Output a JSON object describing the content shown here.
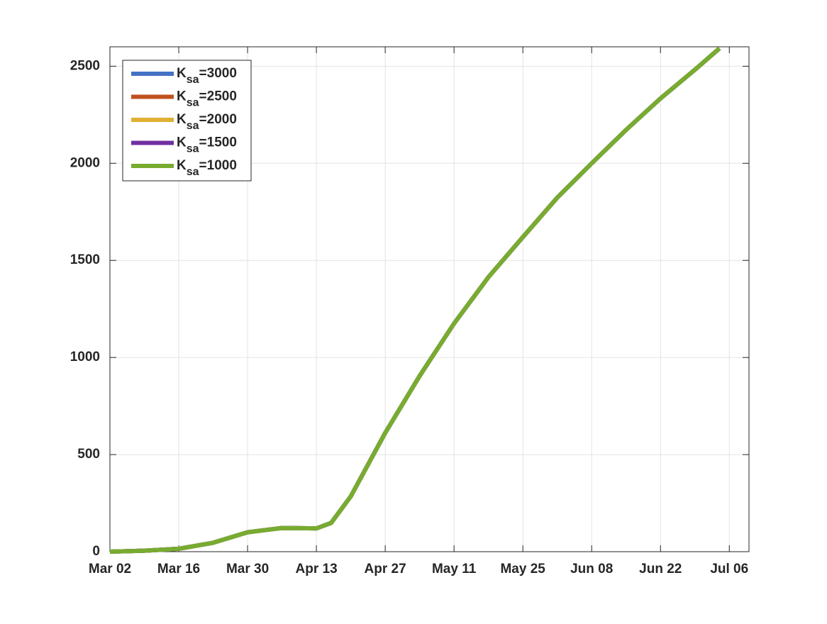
{
  "chart_data": {
    "type": "line",
    "x": [
      "Mar 02",
      "Mar 09",
      "Mar 16",
      "Mar 23",
      "Mar 30",
      "Apr 06",
      "Apr 13",
      "Apr 16",
      "Apr 20",
      "Apr 27",
      "May 04",
      "May 11",
      "May 18",
      "May 25",
      "Jun 01",
      "Jun 08",
      "Jun 15",
      "Jun 22",
      "Jun 29",
      "Jul 04"
    ],
    "series": [
      {
        "name": "Ksa=3000",
        "color": "#4472c4",
        "values": [
          0,
          5,
          15,
          46,
          100,
          122,
          120,
          148,
          285,
          612,
          905,
          1175,
          1414,
          1620,
          1823,
          2000,
          2172,
          2334,
          2482,
          2592
        ]
      },
      {
        "name": "Ksa=2500",
        "color": "#c0501f",
        "values": [
          0,
          5,
          15,
          46,
          100,
          122,
          120,
          148,
          285,
          612,
          905,
          1175,
          1414,
          1620,
          1823,
          2000,
          2172,
          2334,
          2482,
          2592
        ]
      },
      {
        "name": "Ksa=2000",
        "color": "#e0b034",
        "values": [
          0,
          5,
          15,
          46,
          100,
          122,
          120,
          148,
          285,
          612,
          905,
          1175,
          1414,
          1620,
          1823,
          2000,
          2172,
          2334,
          2482,
          2592
        ]
      },
      {
        "name": "Ksa=1500",
        "color": "#7030a0",
        "values": [
          0,
          5,
          15,
          46,
          100,
          122,
          120,
          148,
          285,
          612,
          905,
          1175,
          1414,
          1620,
          1823,
          2000,
          2172,
          2334,
          2482,
          2592
        ]
      },
      {
        "name": "Ksa=1000",
        "color": "#77ac30",
        "values": [
          0,
          5,
          15,
          46,
          100,
          122,
          120,
          148,
          285,
          612,
          905,
          1175,
          1414,
          1620,
          1823,
          2000,
          2172,
          2334,
          2482,
          2592
        ]
      }
    ],
    "xlim": [
      "Mar 02",
      "Jul 10"
    ],
    "xticks": [
      "Mar 02",
      "Mar 16",
      "Mar 30",
      "Apr 13",
      "Apr 27",
      "May 11",
      "May 25",
      "Jun 08",
      "Jun 22",
      "Jul 06"
    ],
    "ylim": [
      0,
      2600
    ],
    "yticks": [
      0,
      500,
      1000,
      1500,
      2000,
      2500
    ],
    "grid": true,
    "legend": "upper-left"
  }
}
